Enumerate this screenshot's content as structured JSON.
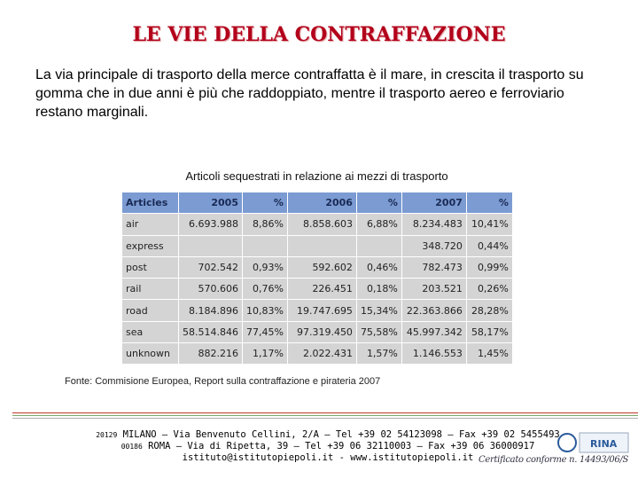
{
  "header": {
    "title": "LE VIE DELLA CONTRAFFAZIONE"
  },
  "body": {
    "paragraph": "La via principale di trasporto della merce contraffatta è il mare, in crescita il trasporto su gomma che in due anni è più che raddoppiato, mentre il trasporto aereo e ferroviario restano marginali."
  },
  "table": {
    "caption": "Articoli sequestrati in relazione ai mezzi di trasporto",
    "columns": [
      "Articles",
      "2005",
      "%",
      "2006",
      "%",
      "2007",
      "%"
    ],
    "rows": [
      [
        "air",
        "6.693.988",
        "8,86%",
        "8.858.603",
        "6,88%",
        "8.234.483",
        "10,41%"
      ],
      [
        "express",
        null,
        null,
        null,
        null,
        "348.720",
        "0,44%"
      ],
      [
        "post",
        "702.542",
        "0,93%",
        "592.602",
        "0,46%",
        "782.473",
        "0,99%"
      ],
      [
        "rail",
        "570.606",
        "0,76%",
        "226.451",
        "0,18%",
        "203.521",
        "0,26%"
      ],
      [
        "road",
        "8.184.896",
        "10,83%",
        "19.747.695",
        "15,34%",
        "22.363.866",
        "28,28%"
      ],
      [
        "sea",
        "58.514.846",
        "77,45%",
        "97.319.450",
        "75,58%",
        "45.997.342",
        "58,17%"
      ],
      [
        "unknown",
        "882.216",
        "1,17%",
        "2.022.431",
        "1,57%",
        "1.146.553",
        "1,45%"
      ]
    ],
    "source": "Fonte: Commisione Europea, Report sulla contraffazione e pirateria 2007"
  },
  "footer": {
    "lines": [
      {
        "zip": "20129",
        "text": "MILANO – Via Benvenuto Cellini, 2/A – Tel +39 02 54123098 – Fax +39 02 5455493"
      },
      {
        "zip": "00186",
        "text": "ROMA – Via di Ripetta, 39 – Tel +39 06 32110003 – Fax +39 06 36000917"
      },
      {
        "text": "istituto@istitutopiepoli.it - www.istitutopiepoli.it"
      }
    ],
    "logo": "RINA",
    "certification": "Certificato conforme n. 14493/06/S"
  }
}
